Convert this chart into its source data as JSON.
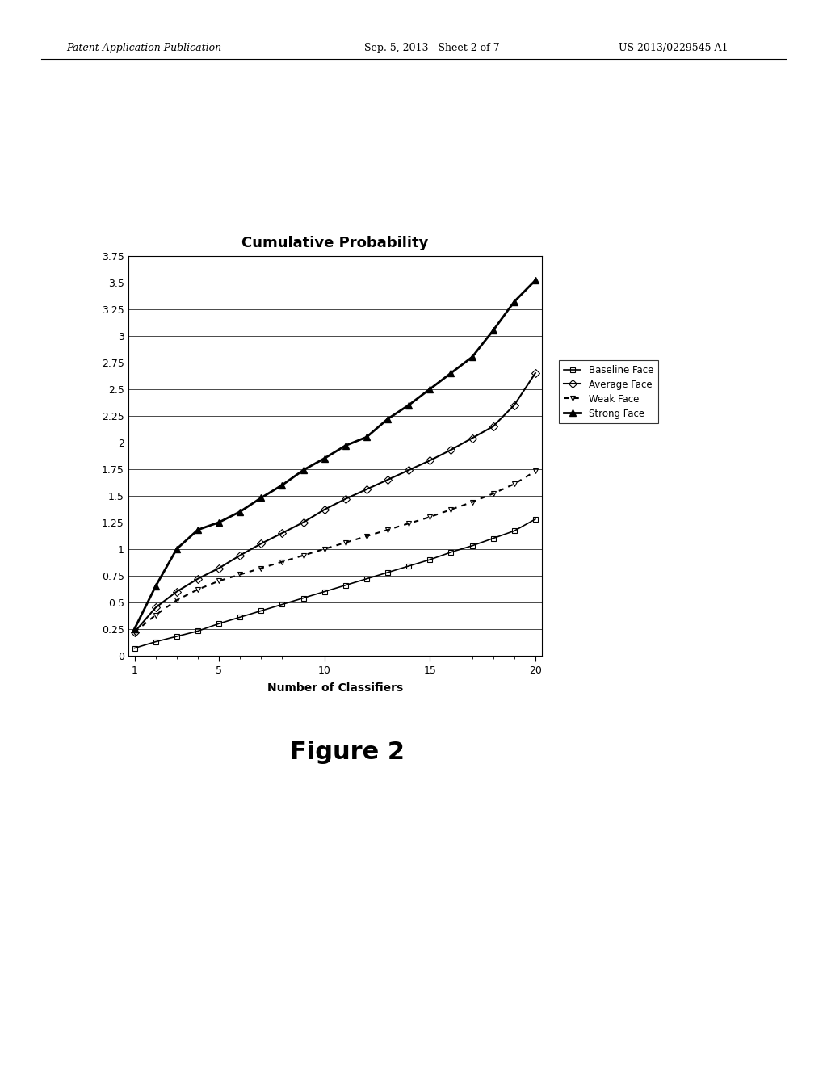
{
  "title": "Cumulative Probability",
  "xlabel": "Number of Classifiers",
  "xlim": [
    1,
    20
  ],
  "ylim": [
    0,
    3.75
  ],
  "yticks": [
    0,
    0.25,
    0.5,
    0.75,
    1.0,
    1.25,
    1.5,
    1.75,
    2.0,
    2.25,
    2.5,
    2.75,
    3.0,
    3.25,
    3.5,
    3.75
  ],
  "xticks": [
    1,
    5,
    10,
    15,
    20
  ],
  "background_color": "#ffffff",
  "figure_caption": "Figure 2",
  "header_left": "Patent Application Publication",
  "header_center": "Sep. 5, 2013   Sheet 2 of 7",
  "header_right": "US 2013/0229545 A1",
  "series": {
    "baseline": {
      "label": "Baseline Face",
      "marker": "s",
      "markersize": 5,
      "linewidth": 1.2,
      "x": [
        1,
        2,
        3,
        4,
        5,
        6,
        7,
        8,
        9,
        10,
        11,
        12,
        13,
        14,
        15,
        16,
        17,
        18,
        19,
        20
      ],
      "y": [
        0.07,
        0.13,
        0.18,
        0.23,
        0.3,
        0.36,
        0.42,
        0.48,
        0.54,
        0.6,
        0.66,
        0.72,
        0.78,
        0.84,
        0.9,
        0.97,
        1.03,
        1.1,
        1.17,
        1.28
      ]
    },
    "average": {
      "label": "Average Face",
      "marker": "D",
      "markersize": 5,
      "linewidth": 1.5,
      "x": [
        1,
        2,
        3,
        4,
        5,
        6,
        7,
        8,
        9,
        10,
        11,
        12,
        13,
        14,
        15,
        16,
        17,
        18,
        19,
        20
      ],
      "y": [
        0.22,
        0.45,
        0.6,
        0.72,
        0.82,
        0.94,
        1.05,
        1.15,
        1.25,
        1.37,
        1.47,
        1.56,
        1.65,
        1.74,
        1.83,
        1.93,
        2.04,
        2.15,
        2.35,
        2.65
      ]
    },
    "weak": {
      "label": "Weak Face",
      "marker": "v",
      "markersize": 5,
      "linewidth": 1.5,
      "x": [
        1,
        2,
        3,
        4,
        5,
        6,
        7,
        8,
        9,
        10,
        11,
        12,
        13,
        14,
        15,
        16,
        17,
        18,
        19,
        20
      ],
      "y": [
        0.22,
        0.38,
        0.52,
        0.62,
        0.7,
        0.76,
        0.82,
        0.88,
        0.94,
        1.0,
        1.06,
        1.12,
        1.18,
        1.24,
        1.3,
        1.37,
        1.44,
        1.52,
        1.61,
        1.73
      ]
    },
    "strong": {
      "label": "Strong Face",
      "marker": "^",
      "markersize": 6,
      "linewidth": 2.0,
      "x": [
        1,
        2,
        3,
        4,
        5,
        6,
        7,
        8,
        9,
        10,
        11,
        12,
        13,
        14,
        15,
        16,
        17,
        18,
        19,
        20
      ],
      "y": [
        0.25,
        0.65,
        1.0,
        1.18,
        1.25,
        1.35,
        1.48,
        1.6,
        1.74,
        1.85,
        1.97,
        2.05,
        2.22,
        2.35,
        2.5,
        2.65,
        2.8,
        3.05,
        3.32,
        3.52
      ]
    }
  }
}
